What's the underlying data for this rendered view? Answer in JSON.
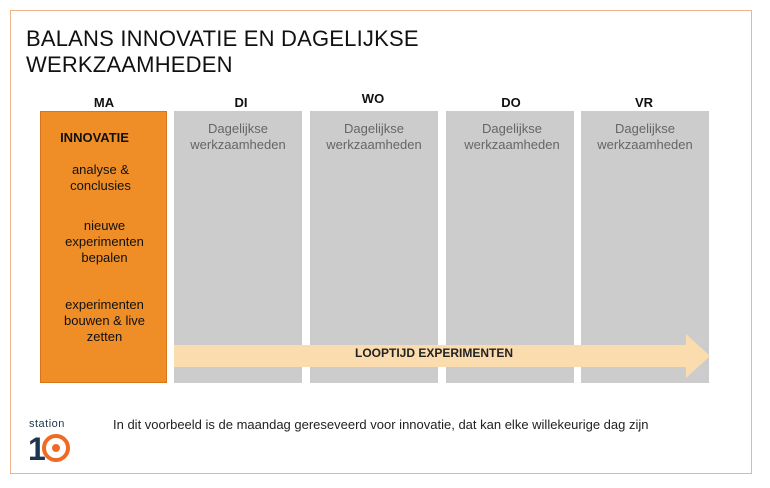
{
  "title_line1": "BALANS INNOVATIE EN DAGELIJKSE",
  "title_line2": "WERKZAAMHEDEN",
  "days": [
    "MA",
    "DI",
    "WO",
    "DO",
    "VR"
  ],
  "monday": {
    "heading": "INNOVATIE",
    "item1_line1": "analyse &",
    "item1_line2": "conclusies",
    "item2_line1": "nieuwe",
    "item2_line2": "experimenten",
    "item2_line3": "bepalen",
    "item3_line1": "experimenten",
    "item3_line2": "bouwen & live",
    "item3_line3": "zetten"
  },
  "daily_line1": "Dagelijkse",
  "daily_line2": "werkzaamheden",
  "arrow_label": "LOOPTIJD EXPERIMENTEN",
  "footer_note": "In dit voorbeeld is de maandag gereseveerd voor innovatie, dat kan elke willekeurige dag zijn",
  "logo": {
    "word": "station",
    "number": "10"
  },
  "colors": {
    "accent_orange": "#ef8d27",
    "grey_column": "#cccccc",
    "arrow_fill": "#fbdcaf",
    "logo_orange": "#ef6a22",
    "logo_navy": "#1e3550"
  }
}
